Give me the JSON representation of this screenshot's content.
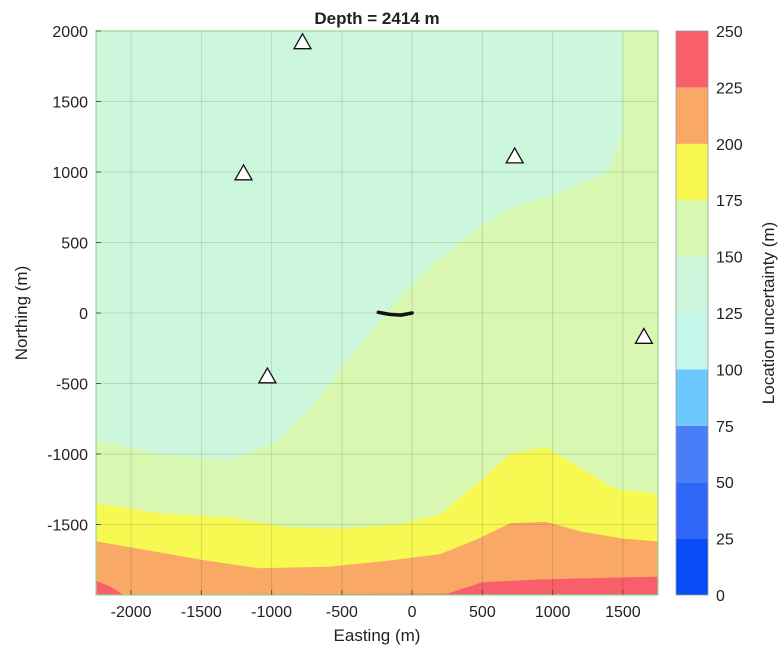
{
  "chart_data": {
    "type": "heatmap",
    "subtype": "filled-contour",
    "title": "Depth = 2414 m",
    "xlabel": "Easting (m)",
    "ylabel": "Northing (m)",
    "xlim": [
      -2250,
      1750
    ],
    "ylim": [
      -2000,
      2000
    ],
    "xticks": [
      -2000,
      -1500,
      -1000,
      -500,
      0,
      500,
      1000,
      1500
    ],
    "yticks": [
      -1500,
      -1000,
      -500,
      0,
      500,
      1000,
      1500,
      2000
    ],
    "colorbar": {
      "label": "Location uncertainty (m)",
      "ticks": [
        0,
        25,
        50,
        75,
        100,
        125,
        150,
        175,
        200,
        225,
        250
      ],
      "levels": [
        {
          "from": 0,
          "to": 25,
          "color": "#0a4cf5"
        },
        {
          "from": 25,
          "to": 50,
          "color": "#2f66f7"
        },
        {
          "from": 50,
          "to": 75,
          "color": "#4a7ef8"
        },
        {
          "from": 75,
          "to": 100,
          "color": "#6cc7fc"
        },
        {
          "from": 100,
          "to": 125,
          "color": "#c6f7ec"
        },
        {
          "from": 125,
          "to": 150,
          "color": "#ccf7dc"
        },
        {
          "from": 150,
          "to": 175,
          "color": "#d8f8b2"
        },
        {
          "from": 175,
          "to": 200,
          "color": "#f8f852"
        },
        {
          "from": 200,
          "to": 225,
          "color": "#f9a866"
        },
        {
          "from": 225,
          "to": 250,
          "color": "#f85f6b"
        }
      ]
    },
    "regions": [
      {
        "level": "150-175",
        "boundary": [
          [
            -2250,
            -2000
          ],
          [
            1750,
            -2000
          ],
          [
            1750,
            2000
          ],
          [
            1500,
            2000
          ],
          [
            1500,
            1300
          ],
          [
            1400,
            1000
          ],
          [
            1050,
            850
          ],
          [
            700,
            750
          ],
          [
            400,
            550
          ],
          [
            150,
            350
          ],
          [
            -100,
            100
          ],
          [
            -350,
            -200
          ],
          [
            -550,
            -450
          ],
          [
            -750,
            -700
          ],
          [
            -950,
            -900
          ],
          [
            -1300,
            -1050
          ],
          [
            -1800,
            -1000
          ],
          [
            -2250,
            -900
          ]
        ]
      },
      {
        "level": "175-200",
        "boundary": [
          [
            -2250,
            -2000
          ],
          [
            1750,
            -2000
          ],
          [
            1750,
            -1280
          ],
          [
            1450,
            -1250
          ],
          [
            1200,
            -1100
          ],
          [
            950,
            -950
          ],
          [
            700,
            -1000
          ],
          [
            450,
            -1220
          ],
          [
            200,
            -1430
          ],
          [
            -100,
            -1500
          ],
          [
            -500,
            -1530
          ],
          [
            -900,
            -1520
          ],
          [
            -1300,
            -1450
          ],
          [
            -1800,
            -1420
          ],
          [
            -2250,
            -1350
          ]
        ]
      },
      {
        "level": "200-225",
        "boundary": [
          [
            -2250,
            -2000
          ],
          [
            1750,
            -2000
          ],
          [
            1750,
            -1620
          ],
          [
            1500,
            -1600
          ],
          [
            1200,
            -1550
          ],
          [
            950,
            -1480
          ],
          [
            700,
            -1490
          ],
          [
            450,
            -1610
          ],
          [
            200,
            -1710
          ],
          [
            -200,
            -1760
          ],
          [
            -600,
            -1800
          ],
          [
            -1100,
            -1810
          ],
          [
            -1500,
            -1750
          ],
          [
            -1900,
            -1680
          ],
          [
            -2250,
            -1620
          ]
        ]
      },
      {
        "level": "225-250",
        "boundary": [
          [
            -2250,
            -2000
          ],
          [
            1750,
            -2000
          ],
          [
            1750,
            -1870
          ],
          [
            1300,
            -1880
          ],
          [
            900,
            -1890
          ],
          [
            500,
            -1910
          ],
          [
            250,
            -1990
          ],
          [
            -2050,
            -2000
          ],
          [
            -2150,
            -1940
          ],
          [
            -2250,
            -1900
          ]
        ]
      }
    ],
    "stations": [
      {
        "x": -780,
        "y": 1920
      },
      {
        "x": -1200,
        "y": 990
      },
      {
        "x": 730,
        "y": 1110
      },
      {
        "x": -1030,
        "y": -450
      },
      {
        "x": 1650,
        "y": -170
      }
    ],
    "fault_trace": [
      [
        -240,
        5
      ],
      [
        -160,
        -10
      ],
      [
        -80,
        -15
      ],
      [
        0,
        0
      ]
    ],
    "grid": true
  }
}
